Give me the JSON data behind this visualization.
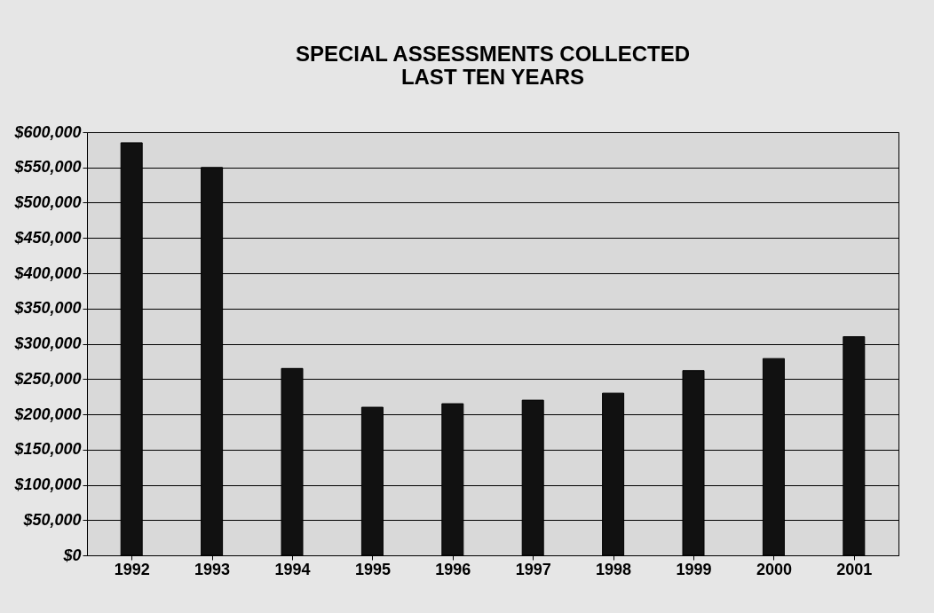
{
  "chart_data": {
    "type": "bar",
    "title": [
      "SPECIAL ASSESSMENTS COLLECTED",
      "LAST TEN YEARS"
    ],
    "categories": [
      "1992",
      "1993",
      "1994",
      "1995",
      "1996",
      "1997",
      "1998",
      "1999",
      "2000",
      "2001"
    ],
    "values": [
      585000,
      550000,
      265000,
      210000,
      215000,
      220000,
      230000,
      262000,
      279000,
      310000
    ],
    "color": "#111111",
    "ylim": [
      0,
      600000
    ],
    "yticks": [
      {
        "value": 0,
        "label": "$0"
      },
      {
        "value": 50000,
        "label": "$50,000"
      },
      {
        "value": 100000,
        "label": "$100,000"
      },
      {
        "value": 150000,
        "label": "$150,000"
      },
      {
        "value": 200000,
        "label": "$200,000"
      },
      {
        "value": 250000,
        "label": "$250,000"
      },
      {
        "value": 300000,
        "label": "$300,000"
      },
      {
        "value": 350000,
        "label": "$350,000"
      },
      {
        "value": 400000,
        "label": "$400,000"
      },
      {
        "value": 450000,
        "label": "$450,000"
      },
      {
        "value": 500000,
        "label": "$500,000"
      },
      {
        "value": 550000,
        "label": "$550,000"
      },
      {
        "value": 600000,
        "label": "$600,000"
      }
    ],
    "grid": "y"
  }
}
